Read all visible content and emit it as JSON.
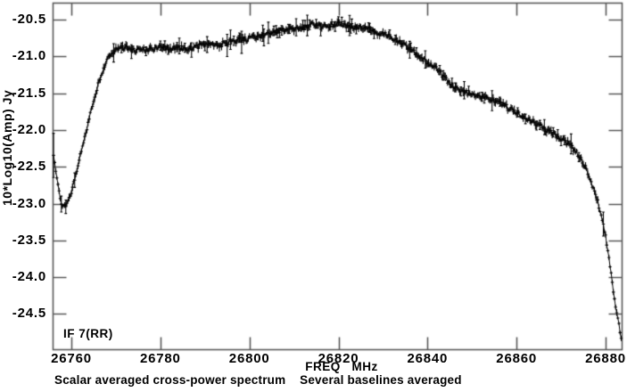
{
  "plot": {
    "ylabel": "10*Log10(Amp) Jy",
    "xlabel": "FREQ   MHz",
    "caption": "Scalar averaged cross-power spectrum    Several baselines averaged",
    "if_label": "IF 7(RR)",
    "colors": {
      "background": "#ffffff",
      "frame": "#5a5a5a",
      "data": "#000000",
      "text": "#000000"
    }
  },
  "chart_data": {
    "type": "line",
    "title": "",
    "xlabel": "FREQ MHz",
    "ylabel": "10*Log10(Amp) Jy",
    "legend": "none",
    "grid": false,
    "marker": "plus-with-errorbar",
    "xlim": [
      26755.8,
      26883.6
    ],
    "ylim": [
      -24.98,
      -20.27
    ],
    "x_tick_values": [
      26760,
      26780,
      26800,
      26820,
      26840,
      26860,
      26880
    ],
    "x_tick_labels": [
      "26760",
      "26780",
      "26800",
      "26820",
      "26840",
      "26860",
      "26880"
    ],
    "y_tick_values": [
      -20.5,
      -21.0,
      -21.5,
      -22.0,
      -22.5,
      -23.0,
      -23.5,
      -24.0,
      -24.5
    ],
    "y_tick_labels": [
      "-20.5",
      "-21.0",
      "-21.5",
      "-22.0",
      "-22.5",
      "-23.0",
      "-23.5",
      "-24.0",
      "-24.5"
    ],
    "channel_step_mhz": 0.25,
    "noise_db": 0.038,
    "errorbar_halfwidth_db": [
      0.022,
      0.067
    ],
    "first_point_error_db": 0.3,
    "series": [
      {
        "name": "Scalar averaged cross-power spectrum (several baselines averaged), IF 7(RR)",
        "points": [
          [
            26756.0,
            -22.35
          ],
          [
            26757.0,
            -22.75
          ],
          [
            26757.8,
            -23.0
          ],
          [
            26758.6,
            -23.05
          ],
          [
            26759.4,
            -22.95
          ],
          [
            26760.2,
            -22.8
          ],
          [
            26761,
            -22.6
          ],
          [
            26762,
            -22.35
          ],
          [
            26763,
            -22.1
          ],
          [
            26764,
            -21.85
          ],
          [
            26765,
            -21.6
          ],
          [
            26766,
            -21.38
          ],
          [
            26767,
            -21.2
          ],
          [
            26768,
            -21.05
          ],
          [
            26769,
            -20.95
          ],
          [
            26770,
            -20.9
          ],
          [
            26772,
            -20.88
          ],
          [
            26774,
            -20.92
          ],
          [
            26776,
            -20.89
          ],
          [
            26778,
            -20.91
          ],
          [
            26780,
            -20.88
          ],
          [
            26782,
            -20.9
          ],
          [
            26784,
            -20.87
          ],
          [
            26786,
            -20.9
          ],
          [
            26788,
            -20.87
          ],
          [
            26790,
            -20.84
          ],
          [
            26792,
            -20.86
          ],
          [
            26794,
            -20.83
          ],
          [
            26796,
            -20.8
          ],
          [
            26798,
            -20.78
          ],
          [
            26800,
            -20.76
          ],
          [
            26802,
            -20.73
          ],
          [
            26804,
            -20.7
          ],
          [
            26806,
            -20.68
          ],
          [
            26808,
            -20.64
          ],
          [
            26810,
            -20.62
          ],
          [
            26812,
            -20.6
          ],
          [
            26814,
            -20.57
          ],
          [
            26816,
            -20.6
          ],
          [
            26818,
            -20.57
          ],
          [
            26820,
            -20.55
          ],
          [
            26822,
            -20.58
          ],
          [
            26824,
            -20.6
          ],
          [
            26826,
            -20.63
          ],
          [
            26828,
            -20.66
          ],
          [
            26830,
            -20.7
          ],
          [
            26832,
            -20.74
          ],
          [
            26834,
            -20.81
          ],
          [
            26836,
            -20.9
          ],
          [
            26838,
            -21.0
          ],
          [
            26840,
            -21.08
          ],
          [
            26842,
            -21.17
          ],
          [
            26844,
            -21.3
          ],
          [
            26846,
            -21.42
          ],
          [
            26848,
            -21.48
          ],
          [
            26850,
            -21.51
          ],
          [
            26852,
            -21.54
          ],
          [
            26854,
            -21.57
          ],
          [
            26856,
            -21.62
          ],
          [
            26858,
            -21.7
          ],
          [
            26860,
            -21.76
          ],
          [
            26862,
            -21.82
          ],
          [
            26864,
            -21.9
          ],
          [
            26866,
            -21.97
          ],
          [
            26868,
            -22.05
          ],
          [
            26870,
            -22.12
          ],
          [
            26872,
            -22.2
          ],
          [
            26874,
            -22.35
          ],
          [
            26875,
            -22.45
          ],
          [
            26876,
            -22.58
          ],
          [
            26877,
            -22.75
          ],
          [
            26878,
            -22.92
          ],
          [
            26879,
            -23.15
          ],
          [
            26880,
            -23.45
          ],
          [
            26881,
            -23.85
          ],
          [
            26882,
            -24.3
          ],
          [
            26883,
            -24.65
          ],
          [
            26883.6,
            -24.87
          ]
        ]
      }
    ]
  }
}
